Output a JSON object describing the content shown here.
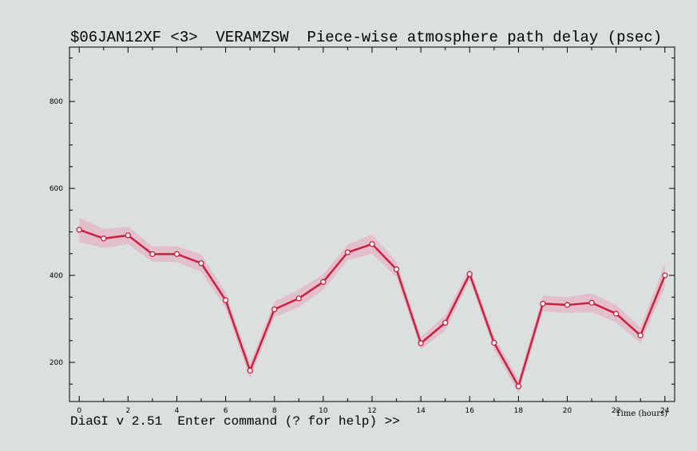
{
  "app": {
    "status_line": "DiaGI v 2.51  Enter command (? for help) >>"
  },
  "chart_data": {
    "type": "line",
    "title": "$06JAN12XF <3>  VERAMZSW  Piece-wise atmosphere path delay (psec)",
    "xlabel": "Time (hours)",
    "ylabel": "",
    "xlim": [
      -0.4,
      24.4
    ],
    "ylim": [
      110,
      925
    ],
    "xticks": [
      0,
      2,
      4,
      6,
      8,
      10,
      12,
      14,
      16,
      18,
      20,
      22,
      24
    ],
    "yticks": [
      200,
      400,
      600,
      800
    ],
    "grid": false,
    "line_color": "#c8203f",
    "band_color": "#e8a4b8",
    "series": [
      {
        "x": [
          0,
          1,
          2,
          3,
          4,
          5,
          6,
          7,
          8,
          9,
          10,
          11,
          12,
          13,
          14,
          15,
          16,
          17,
          18,
          19,
          20,
          21,
          22,
          23,
          24
        ],
        "values": [
          505,
          485,
          492,
          449,
          449,
          428,
          343,
          181,
          322,
          347,
          385,
          453,
          472,
          414,
          244,
          291,
          403,
          245,
          145,
          335,
          332,
          337,
          312,
          262,
          400
        ],
        "error": [
          28,
          22,
          20,
          18,
          18,
          20,
          18,
          18,
          18,
          20,
          18,
          18,
          22,
          18,
          14,
          18,
          14,
          16,
          16,
          18,
          18,
          22,
          20,
          18,
          28
        ]
      }
    ]
  }
}
